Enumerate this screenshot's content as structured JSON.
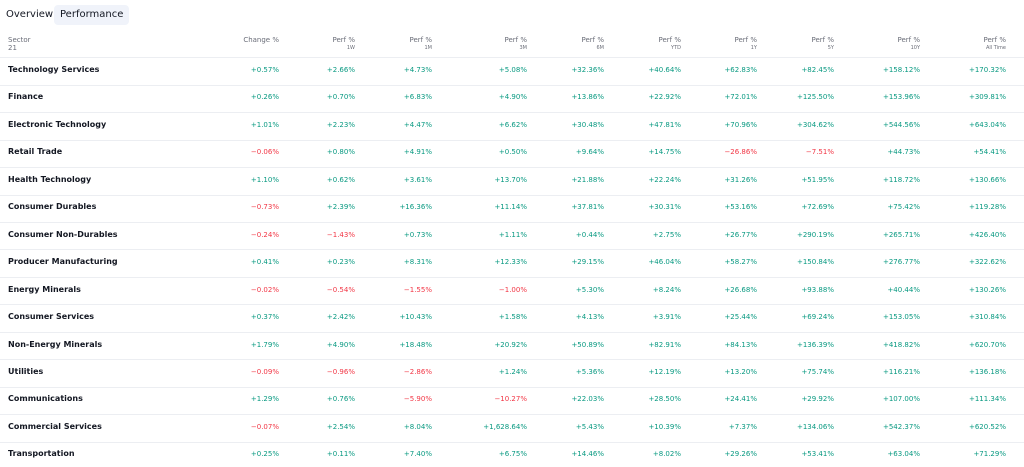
{
  "tabs": [
    "Overview",
    "Performance"
  ],
  "active_tab": 1,
  "table": {
    "header": [
      {
        "title": "Sector",
        "sub": "21"
      },
      {
        "title": "Change %"
      },
      {
        "title": "Perf %",
        "sub": "1W"
      },
      {
        "title": "Perf %",
        "sub": "1M"
      },
      {
        "title": "Perf %",
        "sub": "3M"
      },
      {
        "title": "Perf %",
        "sub": "6M"
      },
      {
        "title": "Perf %",
        "sub": "YTD"
      },
      {
        "title": "Perf %",
        "sub": "1Y"
      },
      {
        "title": "Perf %",
        "sub": "5Y"
      },
      {
        "title": "Perf %",
        "sub": "10Y"
      },
      {
        "title": "Perf %",
        "sub": "All Time"
      }
    ],
    "rows": [
      [
        "Technology Services",
        "+0.57%",
        "+2.66%",
        "+4.73%",
        "+5.08%",
        "+32.36%",
        "+40.64%",
        "+62.83%",
        "+82.45%",
        "+158.12%",
        "+170.32%"
      ],
      [
        "Finance",
        "+0.26%",
        "+0.70%",
        "+6.83%",
        "+4.90%",
        "+13.86%",
        "+22.92%",
        "+72.01%",
        "+125.50%",
        "+153.96%",
        "+309.81%"
      ],
      [
        "Electronic Technology",
        "+1.01%",
        "+2.23%",
        "+4.47%",
        "+6.62%",
        "+30.48%",
        "+47.81%",
        "+70.96%",
        "+304.62%",
        "+544.56%",
        "+643.04%"
      ],
      [
        "Retail Trade",
        "−0.06%",
        "+0.80%",
        "+4.91%",
        "+0.50%",
        "+9.64%",
        "+14.75%",
        "−26.86%",
        "−7.51%",
        "+44.73%",
        "+54.41%"
      ],
      [
        "Health Technology",
        "+1.10%",
        "+0.62%",
        "+3.61%",
        "+13.70%",
        "+21.88%",
        "+22.24%",
        "+31.26%",
        "+51.95%",
        "+118.72%",
        "+130.66%"
      ],
      [
        "Consumer Durables",
        "−0.73%",
        "+2.39%",
        "+16.36%",
        "+11.14%",
        "+37.81%",
        "+30.31%",
        "+53.16%",
        "+72.69%",
        "+75.42%",
        "+119.28%"
      ],
      [
        "Consumer Non-Durables",
        "−0.24%",
        "−1.43%",
        "+0.73%",
        "+1.11%",
        "+0.44%",
        "+2.75%",
        "+26.77%",
        "+290.19%",
        "+265.71%",
        "+426.40%"
      ],
      [
        "Producer Manufacturing",
        "+0.41%",
        "+0.23%",
        "+8.31%",
        "+12.33%",
        "+29.15%",
        "+46.04%",
        "+58.27%",
        "+150.84%",
        "+276.77%",
        "+322.62%"
      ],
      [
        "Energy Minerals",
        "−0.02%",
        "−0.54%",
        "−1.55%",
        "−1.00%",
        "+5.30%",
        "+8.24%",
        "+26.68%",
        "+93.88%",
        "+40.44%",
        "+130.26%"
      ],
      [
        "Consumer Services",
        "+0.37%",
        "+2.42%",
        "+10.43%",
        "+1.58%",
        "+4.13%",
        "+3.91%",
        "+25.44%",
        "+69.24%",
        "+153.05%",
        "+310.84%"
      ],
      [
        "Non-Energy Minerals",
        "+1.79%",
        "+4.90%",
        "+18.48%",
        "+20.92%",
        "+50.89%",
        "+82.91%",
        "+84.13%",
        "+136.39%",
        "+418.82%",
        "+620.70%"
      ],
      [
        "Utilities",
        "−0.09%",
        "−0.96%",
        "−2.86%",
        "+1.24%",
        "+5.36%",
        "+12.19%",
        "+13.20%",
        "+75.74%",
        "+116.21%",
        "+136.18%"
      ],
      [
        "Communications",
        "+1.29%",
        "+0.76%",
        "−5.90%",
        "−10.27%",
        "+22.03%",
        "+28.50%",
        "+24.41%",
        "+29.92%",
        "+107.00%",
        "+111.34%"
      ],
      [
        "Commercial Services",
        "−0.07%",
        "+2.54%",
        "+8.04%",
        "+1,628.64%",
        "+5.43%",
        "+10.39%",
        "+7.37%",
        "+134.06%",
        "+542.37%",
        "+620.52%"
      ],
      [
        "Transportation",
        "+0.25%",
        "+0.11%",
        "+7.40%",
        "+6.75%",
        "+14.46%",
        "+8.02%",
        "+29.26%",
        "+53.41%",
        "+63.04%",
        "+71.29%"
      ]
    ]
  }
}
